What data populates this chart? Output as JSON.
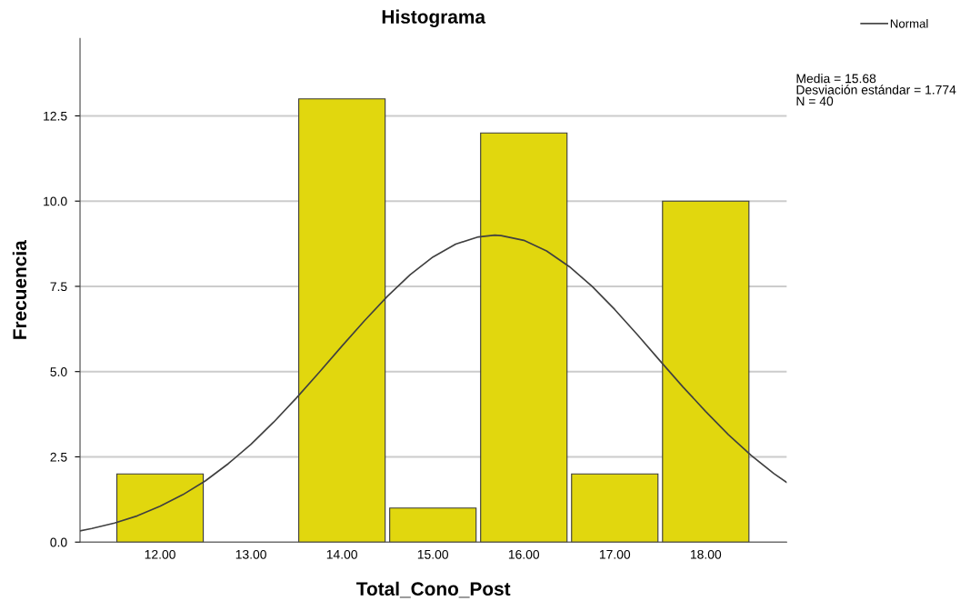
{
  "chart_data": {
    "type": "histogram",
    "title": "Histograma",
    "xlabel": "Total_Cono_Post",
    "ylabel": "Frecuencia",
    "bins": [
      11.5,
      12.5,
      13.5,
      14.5,
      15.5,
      16.5,
      17.5,
      18.5
    ],
    "values": [
      2,
      0,
      13,
      1,
      12,
      2,
      10
    ],
    "color": "#e1d70e",
    "series": [
      {
        "name": "Normal",
        "type": "line",
        "color": "#404040",
        "x": [
          11.12,
          11.25,
          11.5,
          11.75,
          12.0,
          12.25,
          12.5,
          12.75,
          13.0,
          13.25,
          13.5,
          13.75,
          14.0,
          14.25,
          14.5,
          14.75,
          15.0,
          15.25,
          15.5,
          15.68,
          15.75,
          16.0,
          16.25,
          16.5,
          16.75,
          17.0,
          17.25,
          17.5,
          17.75,
          18.0,
          18.25,
          18.5,
          18.75,
          18.89
        ],
        "values": [
          0.33,
          0.4,
          0.56,
          0.77,
          1.05,
          1.39,
          1.8,
          2.3,
          2.87,
          3.52,
          4.23,
          4.98,
          5.75,
          6.5,
          7.21,
          7.84,
          8.36,
          8.74,
          8.95,
          9.0,
          8.99,
          8.85,
          8.54,
          8.08,
          7.5,
          6.82,
          6.08,
          5.31,
          4.55,
          3.83,
          3.15,
          2.54,
          2.01,
          1.75
        ]
      }
    ],
    "xlim": [
      11.12,
      18.89
    ],
    "xticks": [
      {
        "value": 12,
        "label": "12.00"
      },
      {
        "value": 13,
        "label": "13.00"
      },
      {
        "value": 14,
        "label": "14.00"
      },
      {
        "value": 15,
        "label": "15.00"
      },
      {
        "value": 16,
        "label": "16.00"
      },
      {
        "value": 17,
        "label": "17.00"
      },
      {
        "value": 18,
        "label": "18.00"
      }
    ],
    "ylim": [
      0,
      14.77
    ],
    "yticks": [
      {
        "value": 0,
        "label": "0.0"
      },
      2.5,
      {
        "value": 5,
        "label": "5.0"
      },
      7.5,
      {
        "value": 10,
        "label": "10.0"
      },
      12.5
    ],
    "grid": "y",
    "legend": "top right",
    "annotations": [
      "Media = 15.68\nDesviación estándar = 1.774\nN = 40"
    ]
  }
}
